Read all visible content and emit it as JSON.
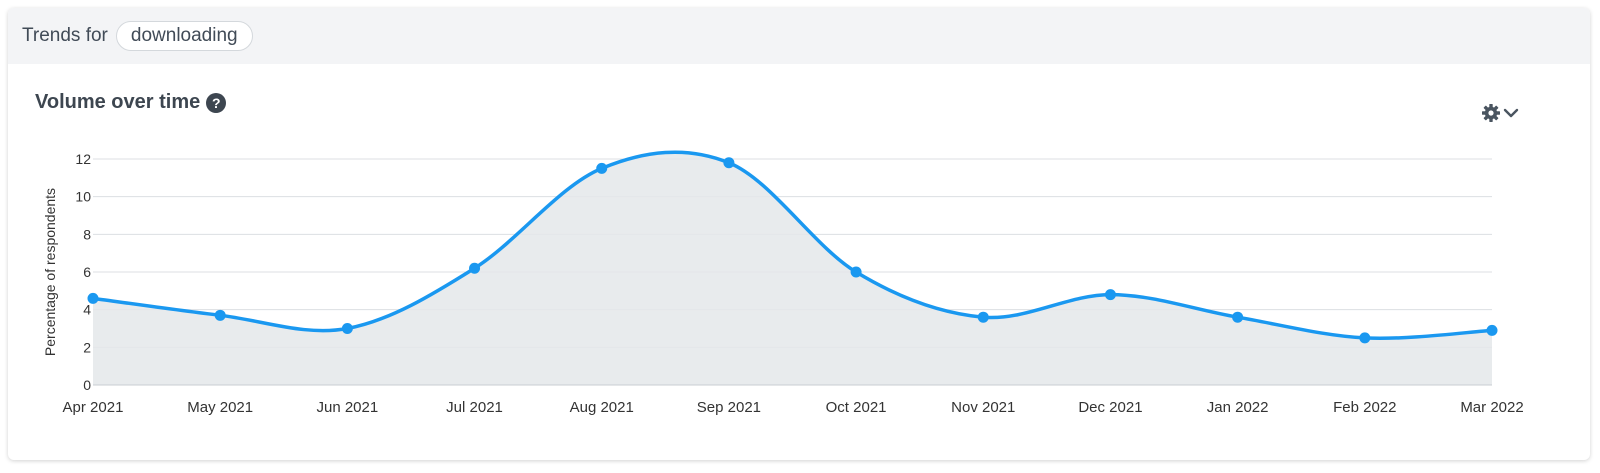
{
  "header": {
    "trends_label": "Trends for",
    "tag": "downloading"
  },
  "section": {
    "title": "Volume over time",
    "help_icon": "question-circle-icon",
    "settings_icon": "gear-icon",
    "dropdown_icon": "chevron-down-icon"
  },
  "colors": {
    "line": "#1a98f0",
    "area": "#e4e8ea",
    "grid": "#dcdfe3",
    "axis_text": "#333333"
  },
  "chart_data": {
    "type": "area",
    "ylabel": "Percentage of respondents",
    "xlabel": "",
    "ylim": [
      0,
      12
    ],
    "yticks": [
      0,
      2,
      4,
      6,
      8,
      10,
      12
    ],
    "grid": true,
    "categories": [
      "Apr 2021",
      "May 2021",
      "Jun 2021",
      "Jul 2021",
      "Aug 2021",
      "Sep 2021",
      "Oct 2021",
      "Nov 2021",
      "Dec 2021",
      "Jan 2022",
      "Feb 2022",
      "Mar 2022"
    ],
    "series": [
      {
        "values": [
          4.6,
          3.7,
          3.0,
          6.2,
          11.5,
          11.8,
          6.0,
          3.6,
          4.8,
          3.6,
          2.5,
          2.9
        ]
      }
    ]
  }
}
